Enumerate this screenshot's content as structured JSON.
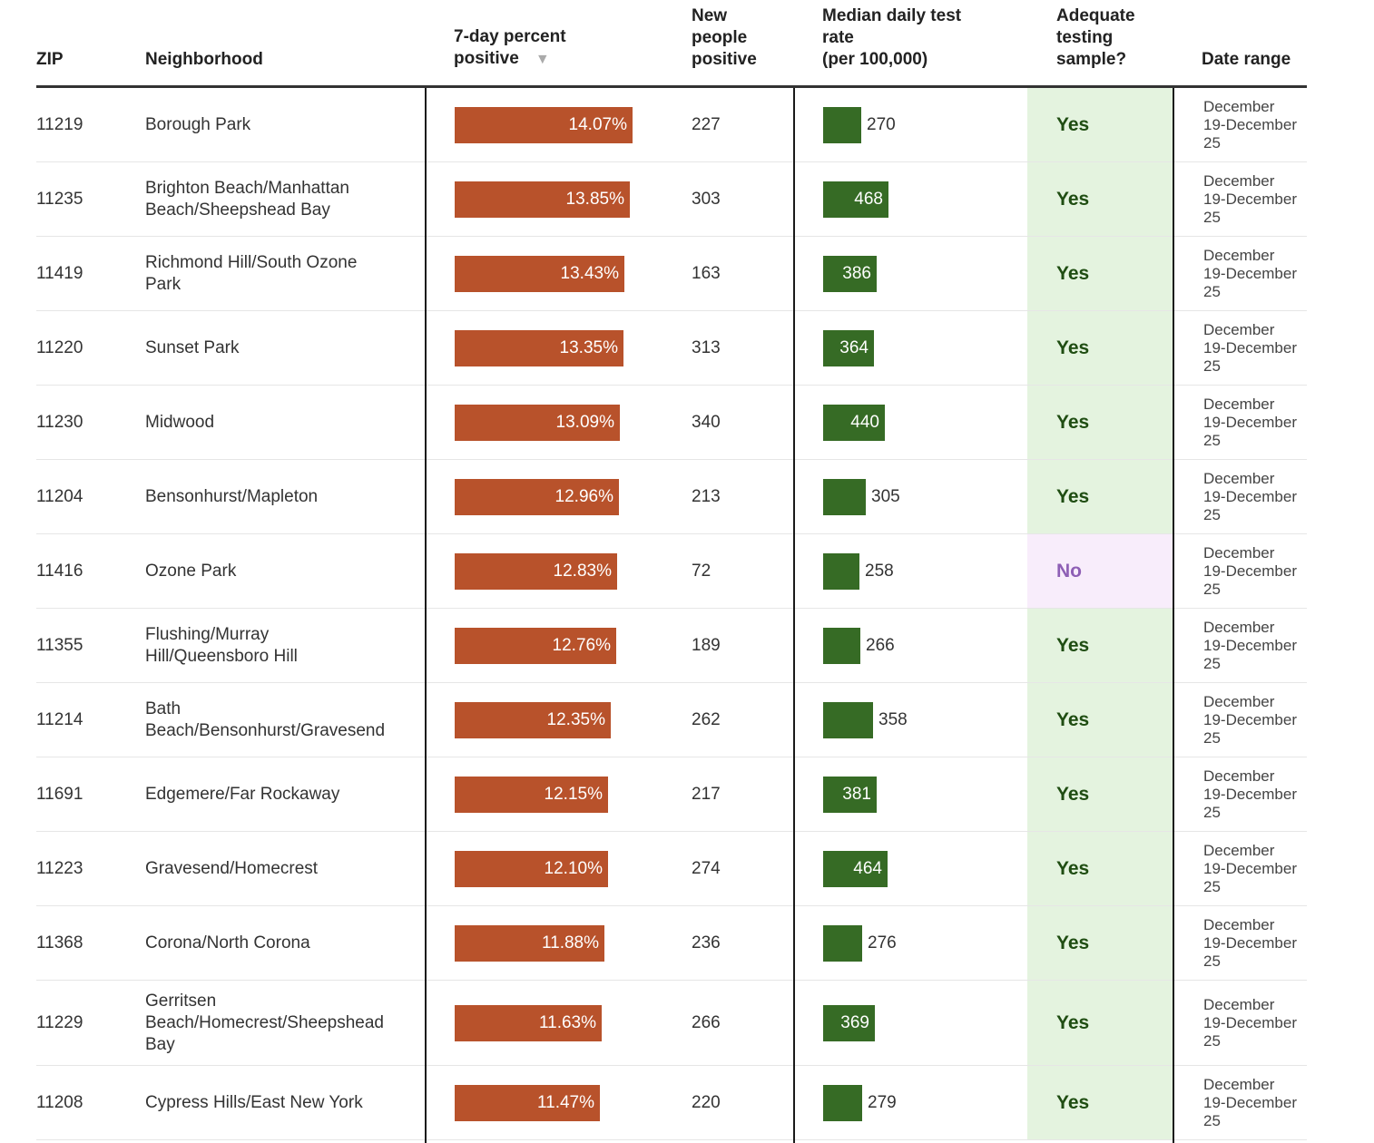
{
  "headers": {
    "zip": "ZIP",
    "neighborhood": "Neighborhood",
    "percent_positive": [
      "7-day percent",
      "positive"
    ],
    "sort_indicator": "▼",
    "new_positive": [
      "New",
      "people",
      "positive"
    ],
    "test_rate": [
      "Median daily test",
      "rate",
      "(per 100,000)"
    ],
    "adequate": [
      "Adequate",
      "testing",
      "sample?"
    ],
    "date_range": "Date range"
  },
  "colors": {
    "positive_bar": "#b8522b",
    "rate_bar": "#366b25",
    "yes_text": "#1f4d12",
    "yes_bg": "#e4f3df",
    "no_text": "#8e5fb5",
    "no_bg": "#f8edfb"
  },
  "chart_data": {
    "type": "table",
    "columns": [
      "ZIP",
      "Neighborhood",
      "7-day percent positive",
      "New people positive",
      "Median daily test rate (per 100,000)",
      "Adequate testing sample?",
      "Date range"
    ],
    "rows": [
      {
        "zip": "11219",
        "neighborhood": [
          "Borough Park"
        ],
        "pct": 14.07,
        "pct_label": "14.07%",
        "new": "227",
        "rate": 270,
        "rate_label": "270",
        "adequate": "Yes",
        "date": [
          "December",
          "19-December",
          "25"
        ]
      },
      {
        "zip": "11235",
        "neighborhood": [
          "Brighton Beach/Manhattan",
          "Beach/Sheepshead Bay"
        ],
        "pct": 13.85,
        "pct_label": "13.85%",
        "new": "303",
        "rate": 468,
        "rate_label": "468",
        "adequate": "Yes",
        "date": [
          "December",
          "19-December",
          "25"
        ]
      },
      {
        "zip": "11419",
        "neighborhood": [
          "Richmond Hill/South Ozone",
          "Park"
        ],
        "pct": 13.43,
        "pct_label": "13.43%",
        "new": "163",
        "rate": 386,
        "rate_label": "386",
        "adequate": "Yes",
        "date": [
          "December",
          "19-December",
          "25"
        ]
      },
      {
        "zip": "11220",
        "neighborhood": [
          "Sunset Park"
        ],
        "pct": 13.35,
        "pct_label": "13.35%",
        "new": "313",
        "rate": 364,
        "rate_label": "364",
        "adequate": "Yes",
        "date": [
          "December",
          "19-December",
          "25"
        ]
      },
      {
        "zip": "11230",
        "neighborhood": [
          "Midwood"
        ],
        "pct": 13.09,
        "pct_label": "13.09%",
        "new": "340",
        "rate": 440,
        "rate_label": "440",
        "adequate": "Yes",
        "date": [
          "December",
          "19-December",
          "25"
        ]
      },
      {
        "zip": "11204",
        "neighborhood": [
          "Bensonhurst/Mapleton"
        ],
        "pct": 12.96,
        "pct_label": "12.96%",
        "new": "213",
        "rate": 305,
        "rate_label": "305",
        "adequate": "Yes",
        "date": [
          "December",
          "19-December",
          "25"
        ]
      },
      {
        "zip": "11416",
        "neighborhood": [
          "Ozone Park"
        ],
        "pct": 12.83,
        "pct_label": "12.83%",
        "new": "72",
        "rate": 258,
        "rate_label": "258",
        "adequate": "No",
        "date": [
          "December",
          "19-December",
          "25"
        ]
      },
      {
        "zip": "11355",
        "neighborhood": [
          "Flushing/Murray",
          "Hill/Queensboro Hill"
        ],
        "pct": 12.76,
        "pct_label": "12.76%",
        "new": "189",
        "rate": 266,
        "rate_label": "266",
        "adequate": "Yes",
        "date": [
          "December",
          "19-December",
          "25"
        ]
      },
      {
        "zip": "11214",
        "neighborhood": [
          "Bath",
          "Beach/Bensonhurst/Gravesend"
        ],
        "pct": 12.35,
        "pct_label": "12.35%",
        "new": "262",
        "rate": 358,
        "rate_label": "358",
        "adequate": "Yes",
        "date": [
          "December",
          "19-December",
          "25"
        ]
      },
      {
        "zip": "11691",
        "neighborhood": [
          "Edgemere/Far Rockaway"
        ],
        "pct": 12.15,
        "pct_label": "12.15%",
        "new": "217",
        "rate": 381,
        "rate_label": "381",
        "adequate": "Yes",
        "date": [
          "December",
          "19-December",
          "25"
        ]
      },
      {
        "zip": "11223",
        "neighborhood": [
          "Gravesend/Homecrest"
        ],
        "pct": 12.1,
        "pct_label": "12.10%",
        "new": "274",
        "rate": 464,
        "rate_label": "464",
        "adequate": "Yes",
        "date": [
          "December",
          "19-December",
          "25"
        ]
      },
      {
        "zip": "11368",
        "neighborhood": [
          "Corona/North Corona"
        ],
        "pct": 11.88,
        "pct_label": "11.88%",
        "new": "236",
        "rate": 276,
        "rate_label": "276",
        "adequate": "Yes",
        "date": [
          "December",
          "19-December",
          "25"
        ]
      },
      {
        "zip": "11229",
        "neighborhood": [
          "Gerritsen",
          "Beach/Homecrest/Sheepshead",
          "Bay"
        ],
        "pct": 11.63,
        "pct_label": "11.63%",
        "new": "266",
        "rate": 369,
        "rate_label": "369",
        "adequate": "Yes",
        "date": [
          "December",
          "19-December",
          "25"
        ]
      },
      {
        "zip": "11208",
        "neighborhood": [
          "Cypress Hills/East New York"
        ],
        "pct": 11.47,
        "pct_label": "11.47%",
        "new": "220",
        "rate": 279,
        "rate_label": "279",
        "adequate": "Yes",
        "date": [
          "December",
          "19-December",
          "25"
        ]
      }
    ]
  }
}
